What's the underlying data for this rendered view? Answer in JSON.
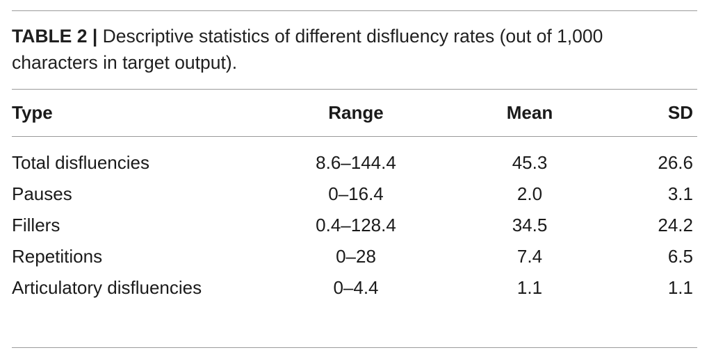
{
  "caption": {
    "label": "TABLE 2 |",
    "text": " Descriptive statistics of different disfluency rates (out of 1,000 characters in target output)."
  },
  "table": {
    "headers": [
      "Type",
      "Range",
      "Mean",
      "SD"
    ],
    "rows": [
      [
        "Total disfluencies",
        "8.6–144.4",
        "45.3",
        "26.6"
      ],
      [
        "Pauses",
        "0–16.4",
        "2.0",
        "3.1"
      ],
      [
        "Fillers",
        "0.4–128.4",
        "34.5",
        "24.2"
      ],
      [
        "Repetitions",
        "0–28",
        "7.4",
        "6.5"
      ],
      [
        "Articulatory disfluencies",
        "0–4.4",
        "1.1",
        "1.1"
      ]
    ]
  }
}
